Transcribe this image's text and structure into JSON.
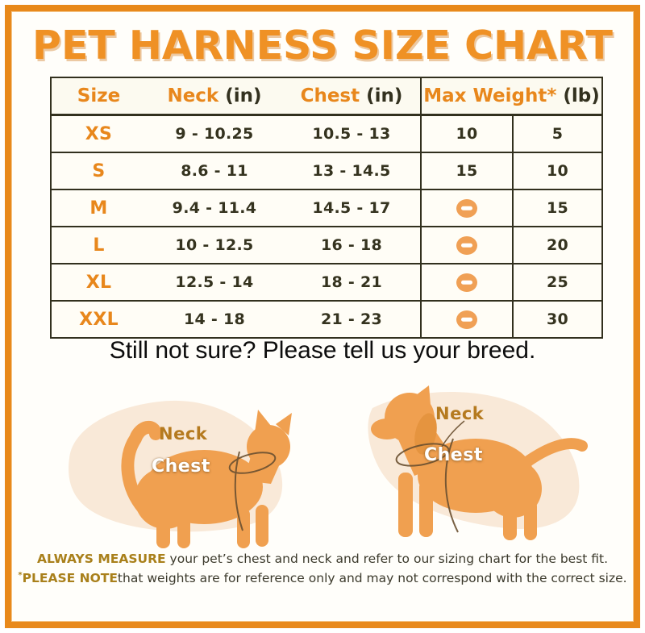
{
  "title": "PET HARNESS SIZE CHART",
  "table": {
    "headers": {
      "size": "Size",
      "neck": "Neck",
      "neck_unit": " (in)",
      "chest": "Chest",
      "chest_unit": " (in)",
      "weight": "Max Weight*",
      "weight_unit": " (lb)"
    },
    "rows": [
      {
        "size": "XS",
        "neck": "9 - 10.25",
        "chest": "10.5 - 13",
        "w1": "10",
        "w1_icon": "",
        "w2": "5"
      },
      {
        "size": "S",
        "neck": "8.6 - 11",
        "chest": "13 - 14.5",
        "w1": "15",
        "w1_icon": "",
        "w2": "10"
      },
      {
        "size": "M",
        "neck": "9.4 - 11.4",
        "chest": "14.5 - 17",
        "w1": "",
        "w1_icon": "minus-icon",
        "w2": "15"
      },
      {
        "size": "L",
        "neck": "10 - 12.5",
        "chest": "16 - 18",
        "w1": "",
        "w1_icon": "minus-icon",
        "w2": "20"
      },
      {
        "size": "XL",
        "neck": "12.5 - 14",
        "chest": "18 - 21",
        "w1": "",
        "w1_icon": "minus-icon",
        "w2": "25"
      },
      {
        "size": "XXL",
        "neck": "14 - 18",
        "chest": "21 - 23",
        "w1": "",
        "w1_icon": "minus-icon",
        "w2": "30"
      }
    ]
  },
  "subtitle": "Still not sure? Please tell us your breed.",
  "cat": {
    "neck_label": "Neck",
    "chest_label": "Chest"
  },
  "dog": {
    "neck_label": "Neck",
    "chest_label": "Chest"
  },
  "notes": {
    "line1_bold": "ALWAYS MEASURE",
    "line1_rest": " your pet’s chest and neck and refer to our sizing chart for the best fit.",
    "line2_mark": "*",
    "line2_bold": "PLEASE NOTE",
    "line2_rest": "that weights are for reference only and may not correspond with the correct size."
  },
  "colors": {
    "frame_border": "#e8891c",
    "title_orange": "#ef9125",
    "table_label_orange": "#e8871c",
    "table_border": "#32301e",
    "table_text": "#35331f",
    "minus_icon": "#f0a055",
    "pet_body": "#f0a050",
    "blob_background": "#f9e9d8",
    "neck_label": "#b57a1f",
    "chest_label": "#ffffff",
    "note_bold_gold": "#a9801b",
    "note_text": "#3c3a2c"
  }
}
